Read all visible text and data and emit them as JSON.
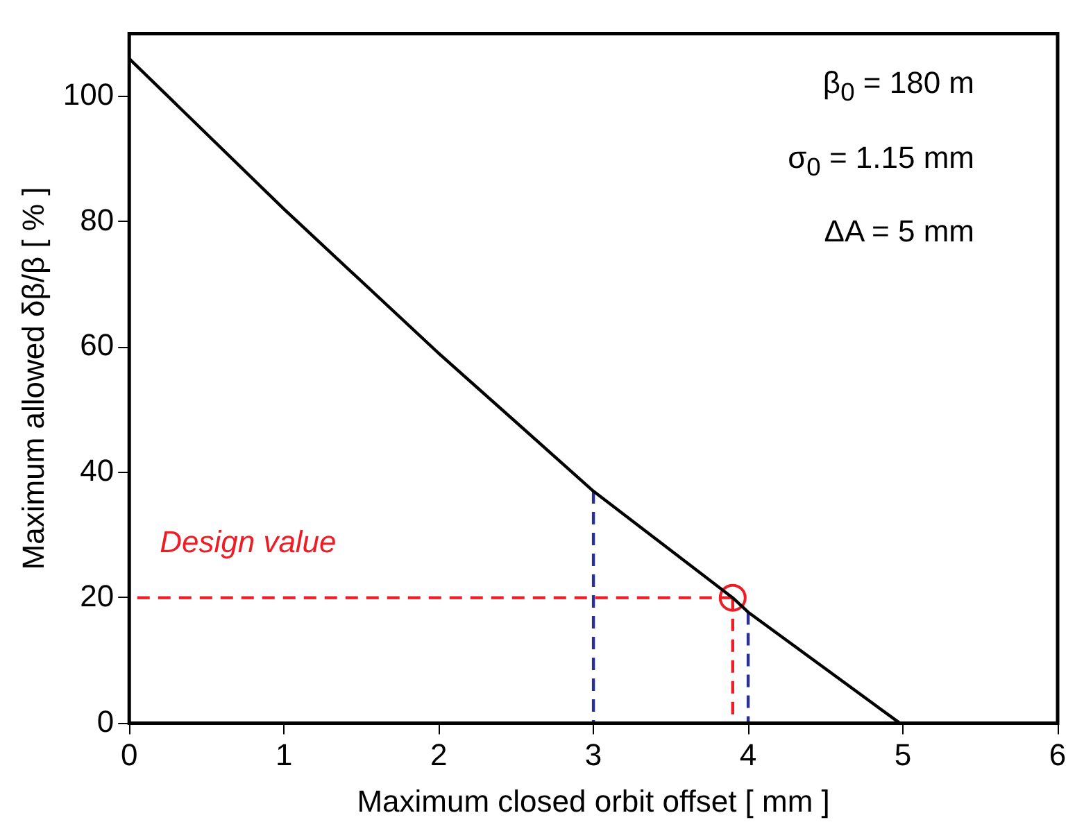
{
  "chart_data": {
    "type": "line",
    "xlabel": "Maximum closed orbit offset [ mm ]",
    "ylabel": "Maximum allowed δβ/β [ % ]",
    "xlim": [
      0,
      6
    ],
    "xticks": [
      0,
      1,
      2,
      3,
      4,
      5,
      6
    ],
    "ylim": [
      0,
      110
    ],
    "yticks": [
      0,
      20,
      40,
      60,
      80,
      100
    ],
    "grid": false,
    "legend": false,
    "series": [
      {
        "type": "line",
        "color": "#000000",
        "x": [
          0,
          1,
          2,
          3,
          3.9,
          4,
          4.98
        ],
        "values": [
          106,
          82,
          59,
          37,
          20,
          17.7,
          0
        ]
      },
      {
        "type": "line",
        "color": "#2b2f8f",
        "line_style": "dashed",
        "x": [
          3,
          3
        ],
        "values": [
          37,
          0
        ]
      },
      {
        "type": "line",
        "color": "#2b2f8f",
        "line_style": "dashed",
        "x": [
          4,
          4
        ],
        "values": [
          17.7,
          0
        ]
      },
      {
        "type": "line",
        "color": "#ee1c25",
        "line_style": "dashed",
        "x": [
          3.9,
          0
        ],
        "values": [
          20,
          20
        ]
      },
      {
        "type": "line",
        "color": "#ee1c25",
        "line_style": "dashed",
        "x": [
          3.9,
          3.9
        ],
        "values": [
          20,
          0
        ]
      },
      {
        "type": "scatter",
        "color": "#ee1c25",
        "marker": "circle",
        "x": [
          3.9
        ],
        "values": [
          20
        ]
      }
    ],
    "annotations": [
      "Design value",
      "β$_{0}$ = 180 m",
      "σ$_{0}$ = 1.15 mm",
      "ΔA = 5 mm"
    ]
  }
}
